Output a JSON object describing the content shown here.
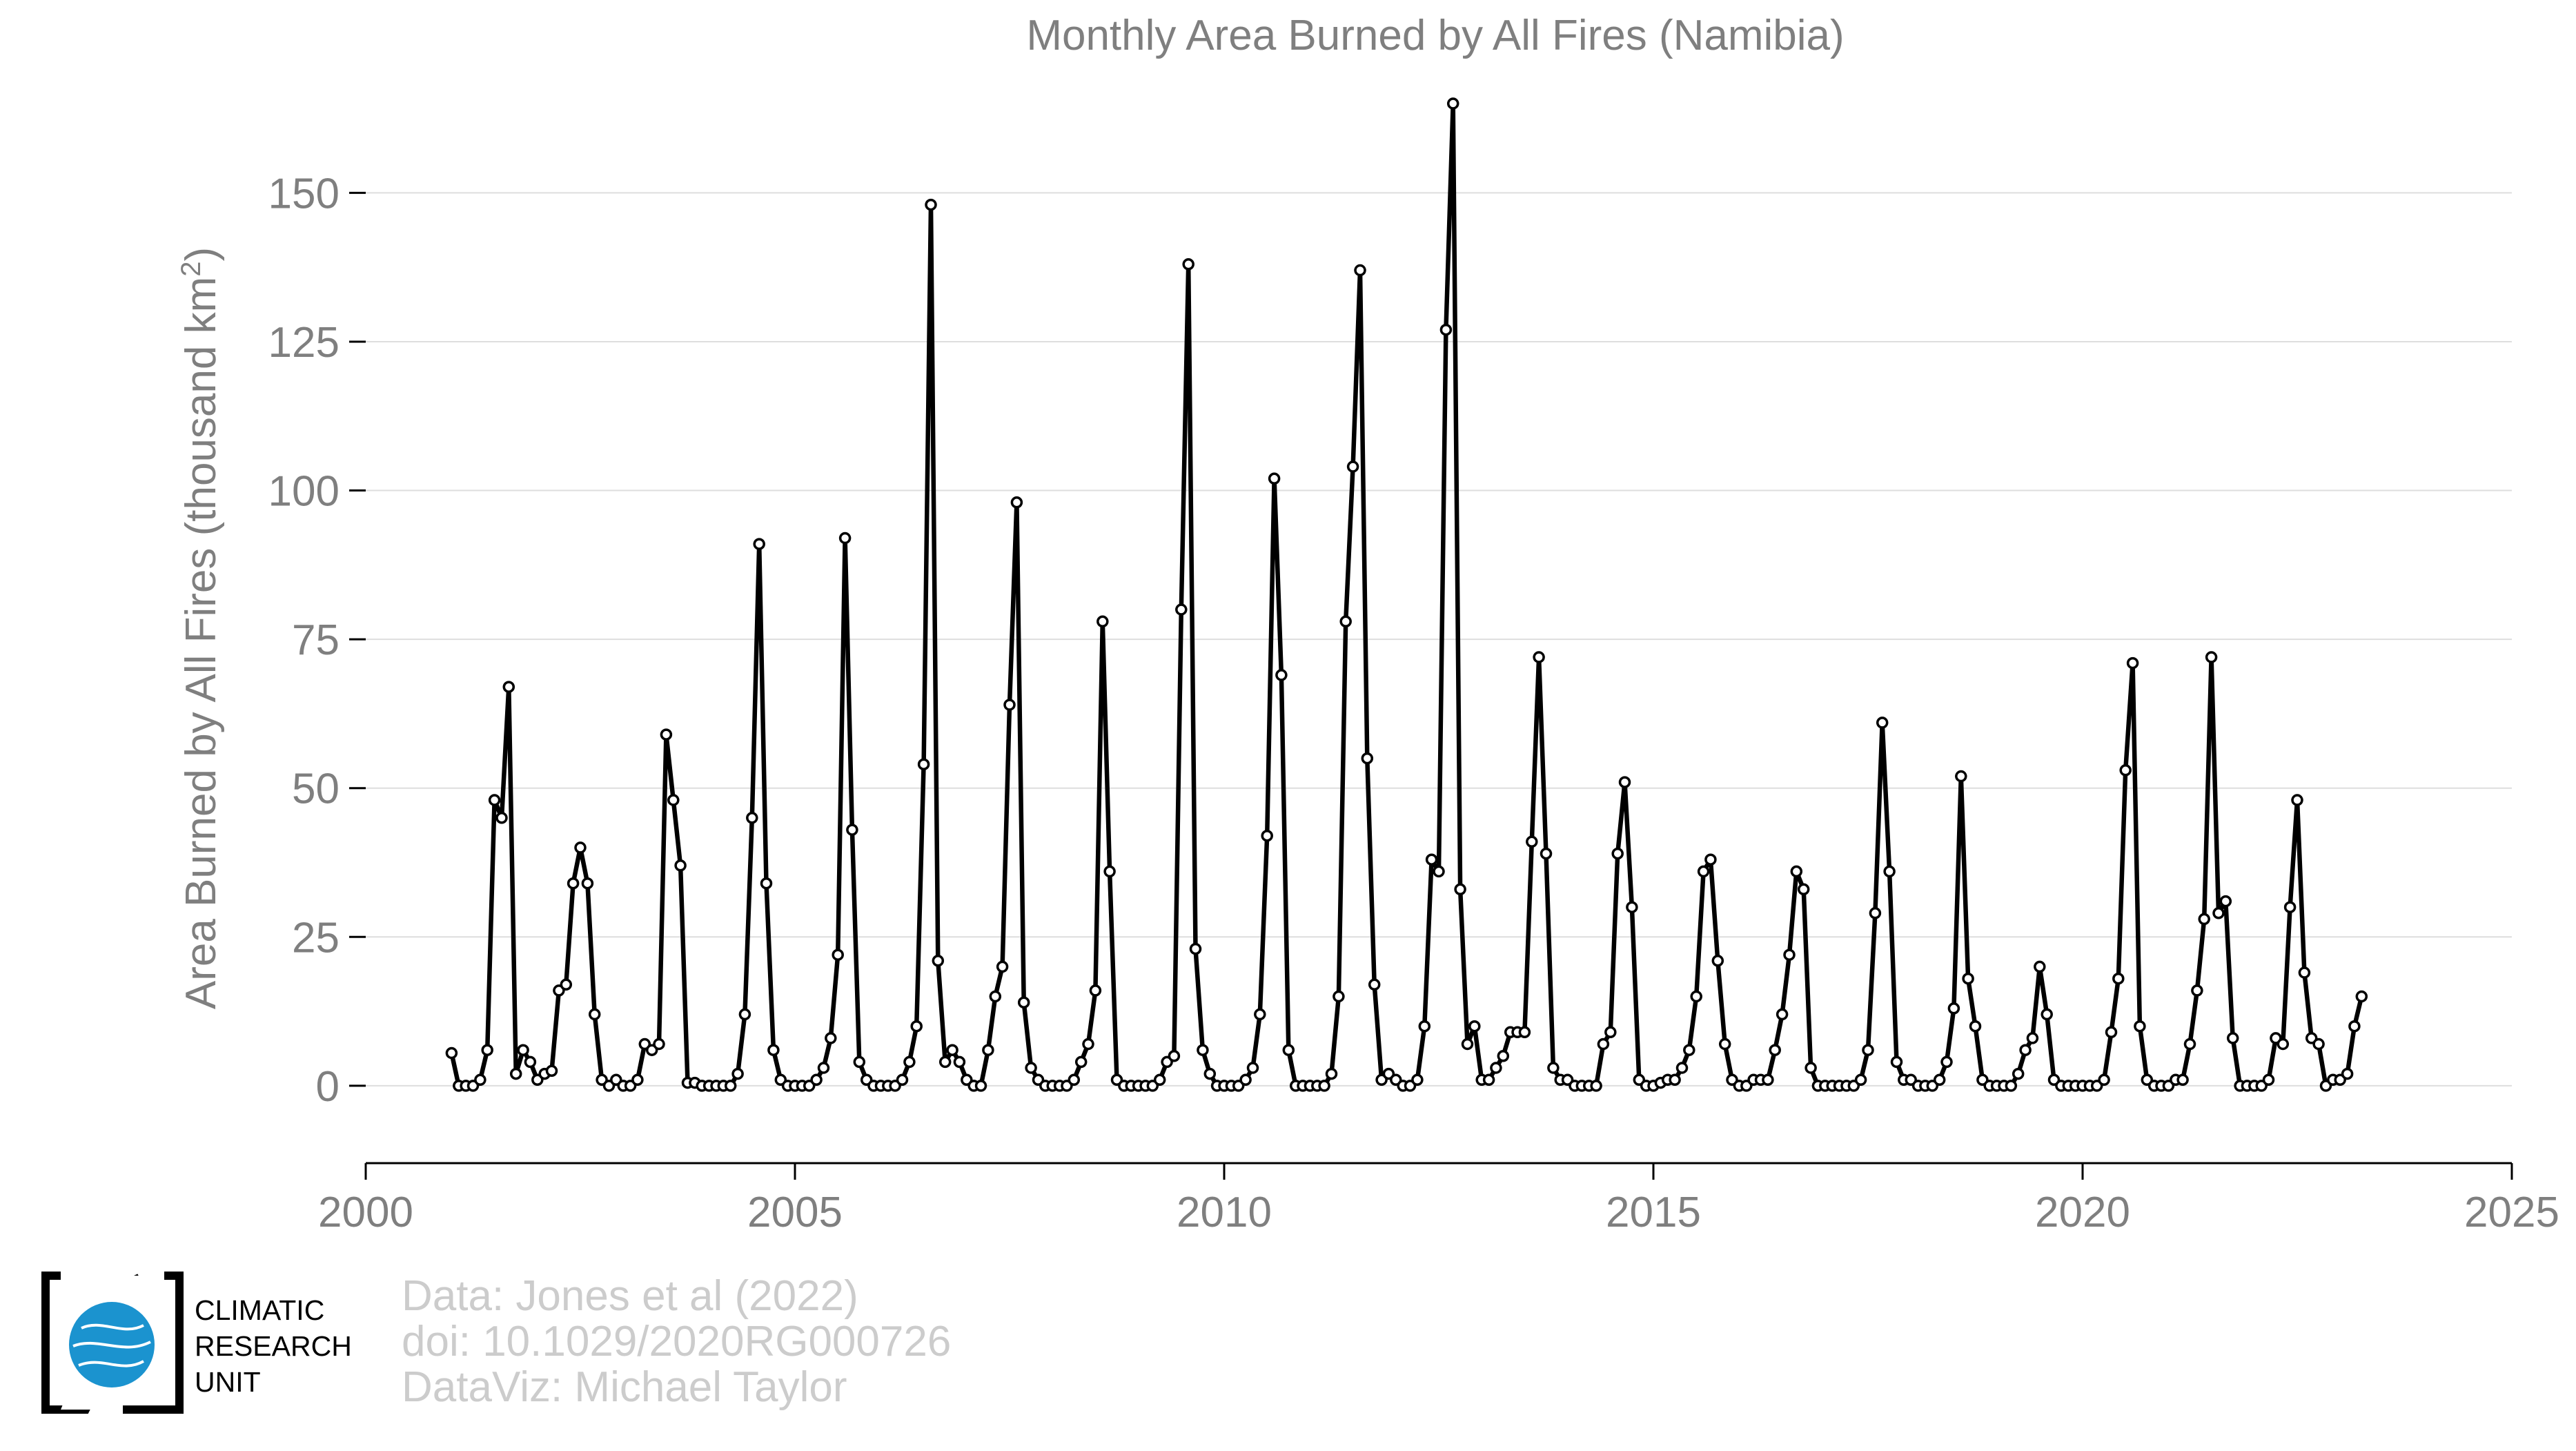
{
  "chart_data": {
    "type": "line",
    "title": "Monthly Area Burned by All Fires (Namibia)",
    "ylabel": "Area Burned by All Fires (thousand km",
    "ylabel_sup": "2",
    "ylabel_end": ")",
    "xlim": [
      2000,
      2025
    ],
    "ylim": [
      -13,
      165
    ],
    "xticks": [
      "2000",
      "2005",
      "2010",
      "2015",
      "2020",
      "2025"
    ],
    "yticks": [
      "0",
      "25",
      "50",
      "75",
      "100",
      "125",
      "150"
    ],
    "x_start": 2001.0,
    "x_step_months": 1,
    "series": [
      {
        "values": [
          5.5,
          0,
          0,
          0,
          1,
          6,
          48,
          45,
          67,
          2,
          6,
          4,
          1,
          2,
          2.5,
          16,
          17,
          34,
          40,
          34,
          12,
          1,
          0,
          1,
          0,
          0,
          1,
          7,
          6,
          7,
          59,
          48,
          37,
          0.5,
          0.5,
          0,
          0,
          0,
          0,
          0,
          2,
          12,
          45,
          91,
          34,
          6,
          1,
          0,
          0,
          0,
          0,
          1,
          3,
          8,
          22,
          92,
          43,
          4,
          1,
          0,
          0,
          0,
          0,
          1,
          4,
          10,
          54,
          148,
          21,
          4,
          6,
          4,
          1,
          0,
          0,
          6,
          15,
          20,
          64,
          98,
          14,
          3,
          1,
          0,
          0,
          0,
          0,
          1,
          4,
          7,
          16,
          78,
          36,
          1,
          0,
          0,
          0,
          0,
          0,
          1,
          4,
          5,
          80,
          138,
          23,
          6,
          2,
          0,
          0,
          0,
          0,
          1,
          3,
          12,
          42,
          102,
          69,
          6,
          0,
          0,
          0,
          0,
          0,
          2,
          15,
          78,
          104,
          137,
          55,
          17,
          1,
          2,
          1,
          0,
          0,
          1,
          10,
          38,
          36,
          127,
          165,
          33,
          7,
          10,
          1,
          1,
          3,
          5,
          9,
          9,
          9,
          41,
          72,
          39,
          3,
          1,
          1,
          0,
          0,
          0,
          0,
          7,
          9,
          39,
          51,
          30,
          1,
          0,
          0,
          0.5,
          1,
          1,
          3,
          6,
          15,
          36,
          38,
          21,
          7,
          1,
          0,
          0,
          1,
          1,
          1,
          6,
          12,
          22,
          36,
          33,
          3,
          0,
          0,
          0,
          0,
          0,
          0,
          1,
          6,
          29,
          61,
          36,
          4,
          1,
          1,
          0,
          0,
          0,
          1,
          4,
          13,
          52,
          18,
          10,
          1,
          0,
          0,
          0,
          0,
          2,
          6,
          8,
          20,
          12,
          1,
          0,
          0,
          0,
          0,
          0,
          0,
          1,
          9,
          18,
          53,
          71,
          10,
          1,
          0,
          0,
          0,
          1,
          1,
          7,
          16,
          28,
          72,
          29,
          31,
          8,
          0,
          0,
          0,
          0,
          1,
          8,
          7,
          30,
          48,
          19,
          8,
          7,
          0,
          1,
          1,
          2,
          10,
          15
        ]
      }
    ]
  },
  "credits": {
    "line1": "Data: Jones et al (2022)",
    "line2": "doi: 10.1029/2020RG000726",
    "line3": "DataViz: Michael Taylor"
  },
  "logo": {
    "line1": "CLIMATIC",
    "line2": "RESEARCH",
    "line3": "UNIT",
    "globe_color": "#1b93cf"
  }
}
